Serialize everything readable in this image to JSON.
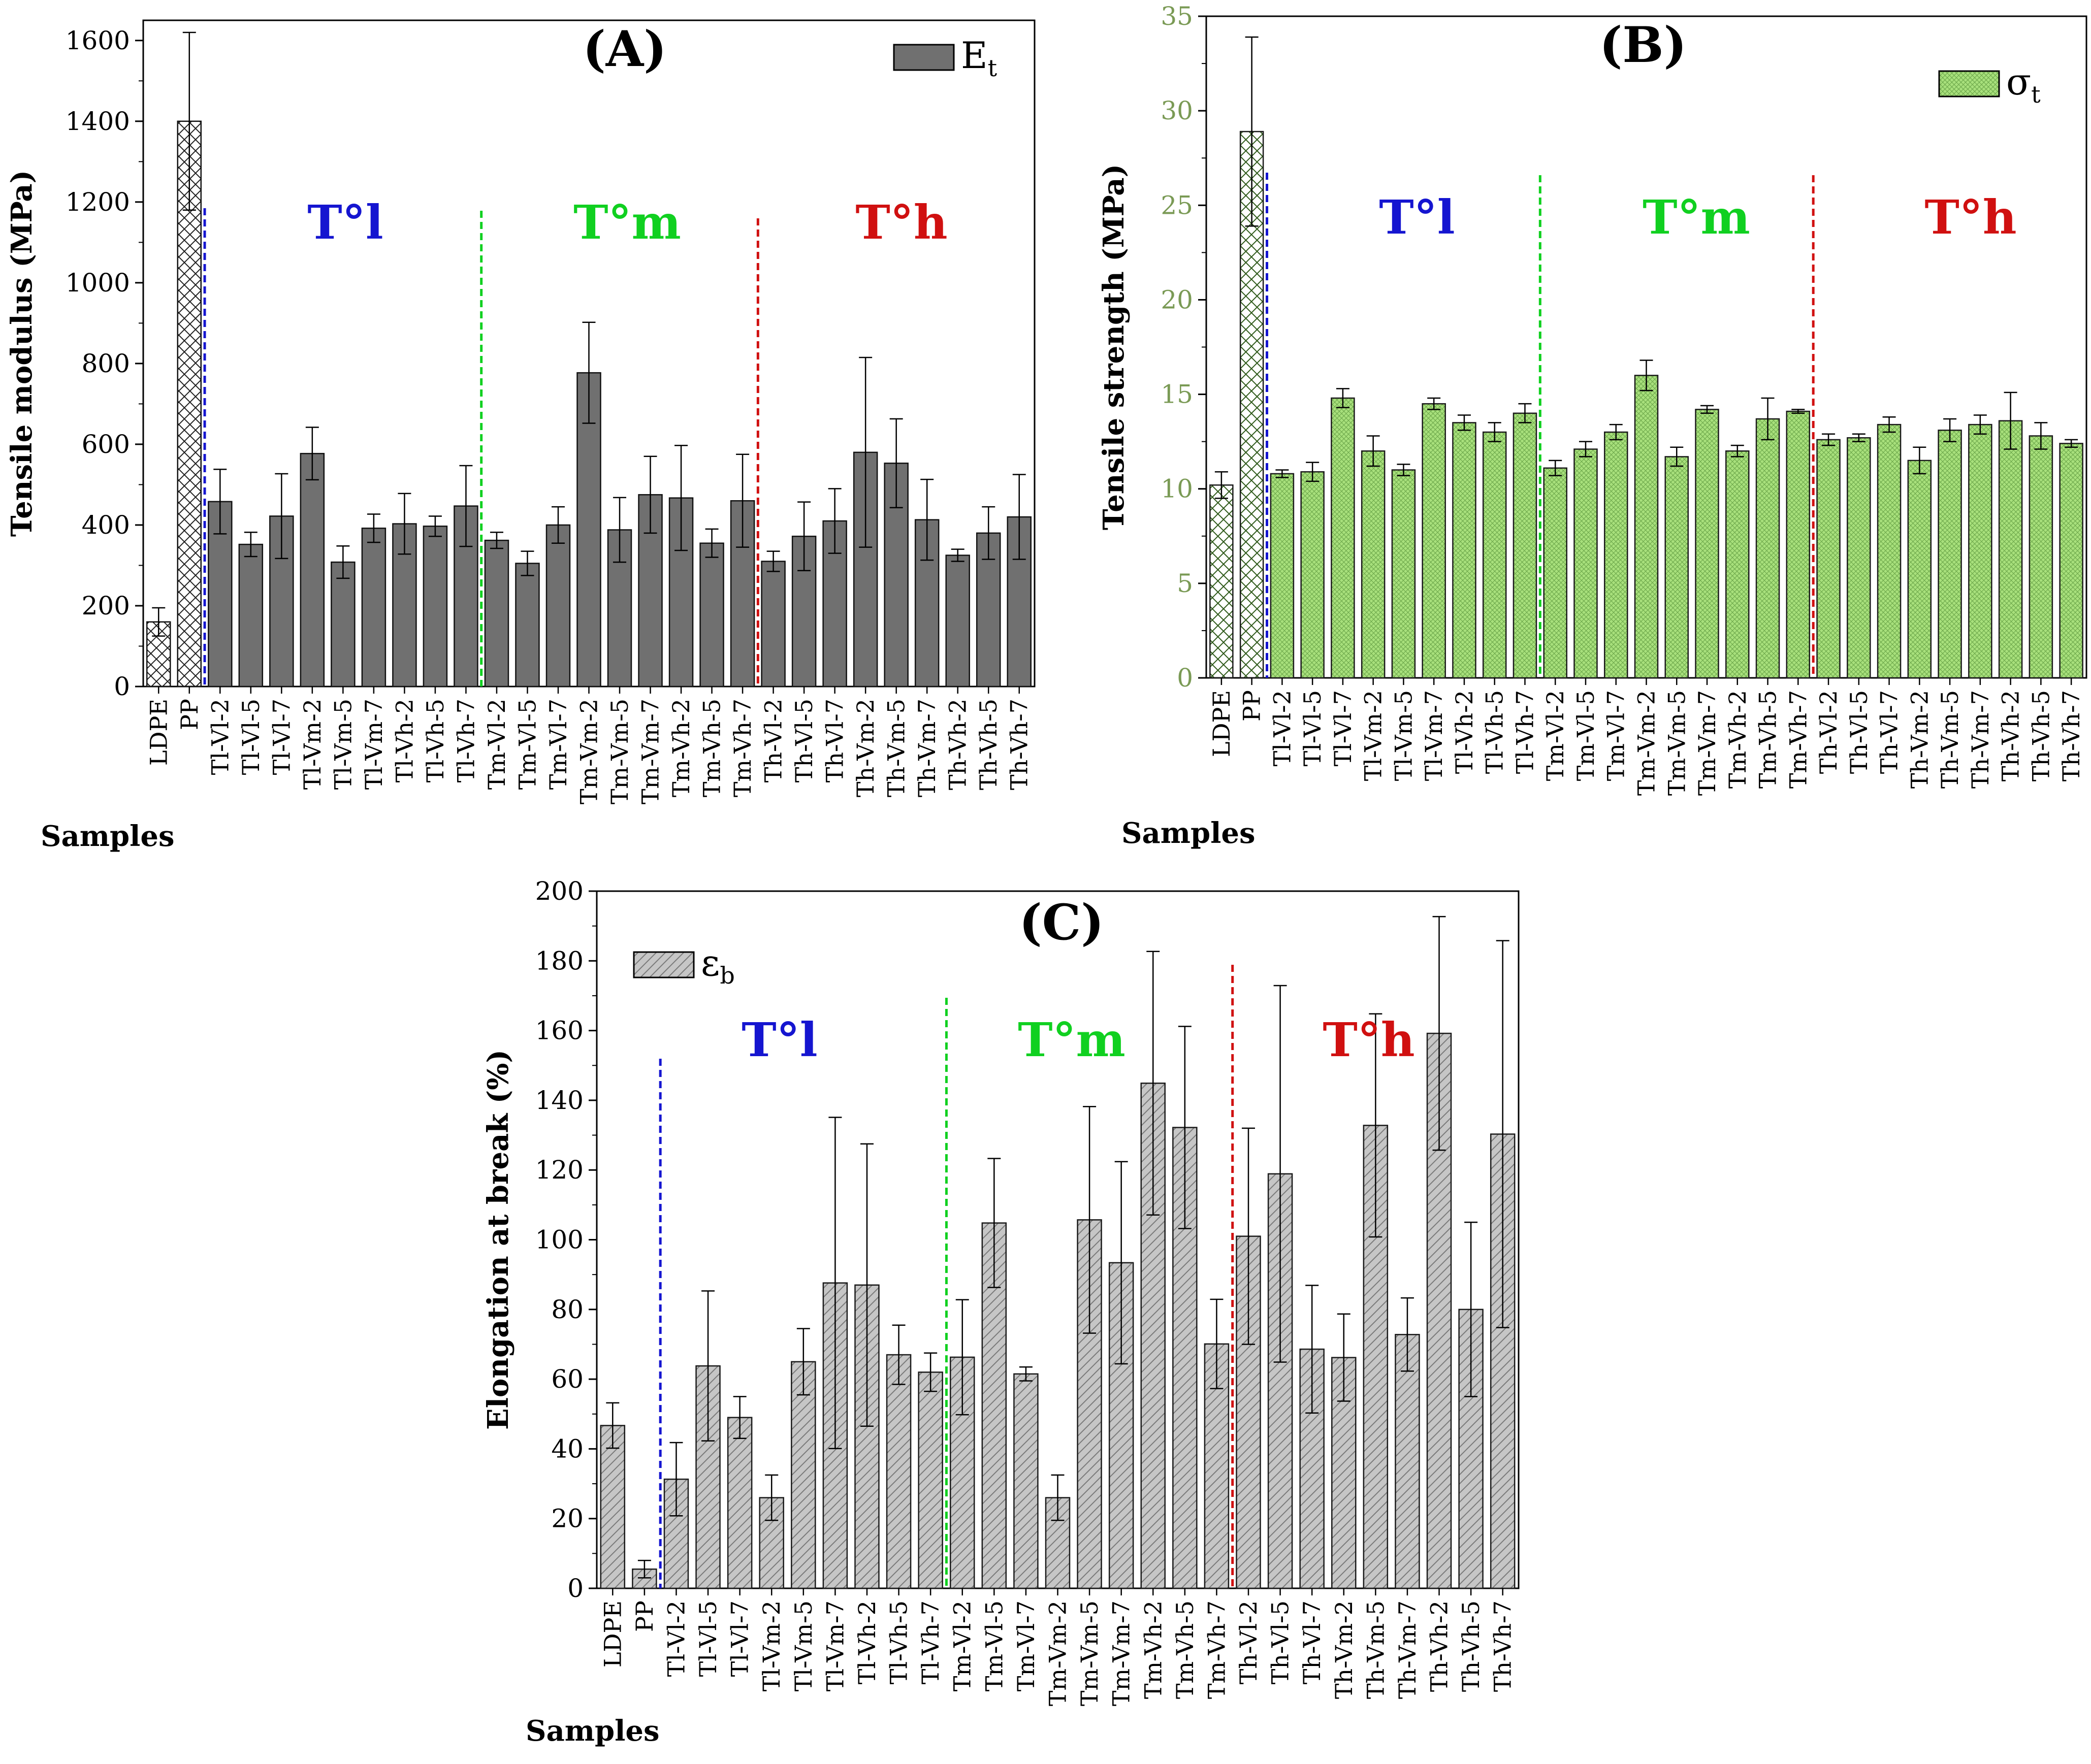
{
  "palette": {
    "axis": "#000000",
    "barA": "#707070",
    "barB": "#a6e07a",
    "barC": "#c4c4c4",
    "blue": "#1515d0",
    "green": "#10d020",
    "red": "#d01010",
    "axisB": "#7a9a55"
  },
  "categories": [
    "LDPE",
    "PP",
    "Tl-Vl-2",
    "Tl-Vl-5",
    "Tl-Vl-7",
    "Tl-Vm-2",
    "Tl-Vm-5",
    "Tl-Vm-7",
    "Tl-Vh-2",
    "Tl-Vh-5",
    "Tl-Vh-7",
    "Tm-Vl-2",
    "Tm-Vl-5",
    "Tm-Vl-7",
    "Tm-Vm-2",
    "Tm-Vm-5",
    "Tm-Vm-7",
    "Tm-Vh-2",
    "Tm-Vh-5",
    "Tm-Vh-7",
    "Th-Vl-2",
    "Th-Vl-5",
    "Th-Vl-7",
    "Th-Vm-2",
    "Th-Vm-5",
    "Th-Vm-7",
    "Th-Vh-2",
    "Th-Vh-5",
    "Th-Vh-7"
  ],
  "chart_data": [
    {
      "type": "bar",
      "panel": "(A)",
      "title": "(A)",
      "ylabel": "Tensile modulus (MPa)",
      "xlabel": "Samples",
      "legend": "E",
      "legend_sub": "t",
      "legend_position": "top-right",
      "ylim": [
        0,
        1650
      ],
      "yticks": [
        0,
        200,
        400,
        600,
        800,
        1000,
        1200,
        1400,
        1600
      ],
      "values": [
        160,
        1400,
        458,
        352,
        422,
        577,
        308,
        392,
        403,
        397,
        447,
        362,
        305,
        400,
        777,
        388,
        475,
        467,
        355,
        460,
        310,
        372,
        410,
        580,
        553,
        413,
        325,
        380,
        420
      ],
      "errors": [
        35,
        220,
        80,
        30,
        105,
        65,
        40,
        35,
        75,
        25,
        100,
        20,
        30,
        45,
        125,
        80,
        95,
        130,
        35,
        115,
        25,
        85,
        80,
        235,
        110,
        100,
        15,
        65,
        105
      ],
      "regions": [
        {
          "label": "T°l",
          "after_index": 1,
          "color": "#1515d0"
        },
        {
          "label": "T°m",
          "after_index": 10,
          "color": "#10d020"
        },
        {
          "label": "T°h",
          "after_index": 19,
          "color": "#d01010"
        }
      ]
    },
    {
      "type": "bar",
      "panel": "(B)",
      "title": "(B)",
      "ylabel": "Tensile strength (MPa)",
      "xlabel": "Samples",
      "legend": "σ",
      "legend_sub": "t",
      "legend_position": "top-right",
      "ylim": [
        0,
        35
      ],
      "yticks": [
        0,
        5,
        10,
        15,
        20,
        25,
        30,
        35
      ],
      "values": [
        10.2,
        28.9,
        10.8,
        10.9,
        14.8,
        12.0,
        11.0,
        14.5,
        13.5,
        13.0,
        14.0,
        11.1,
        12.1,
        13.0,
        16.0,
        11.7,
        14.2,
        12.0,
        13.7,
        14.1,
        12.6,
        12.7,
        13.4,
        11.5,
        13.1,
        13.4,
        13.6,
        12.8,
        12.4
      ],
      "errors": [
        0.7,
        5.0,
        0.2,
        0.5,
        0.5,
        0.8,
        0.3,
        0.3,
        0.4,
        0.5,
        0.5,
        0.4,
        0.4,
        0.4,
        0.8,
        0.5,
        0.2,
        0.3,
        1.1,
        0.1,
        0.3,
        0.2,
        0.4,
        0.7,
        0.6,
        0.5,
        1.5,
        0.7,
        0.2
      ],
      "regions": [
        {
          "label": "T°l",
          "after_index": 1,
          "color": "#1515d0"
        },
        {
          "label": "T°m",
          "after_index": 10,
          "color": "#10d020"
        },
        {
          "label": "T°h",
          "after_index": 19,
          "color": "#d01010"
        }
      ]
    },
    {
      "type": "bar",
      "panel": "(C)",
      "title": "(C)",
      "ylabel": "Elongation at break (%)",
      "xlabel": "Samples",
      "legend": "ε",
      "legend_sub": "b",
      "legend_position": "top-left",
      "ylim": [
        0,
        200
      ],
      "yticks": [
        0,
        20,
        40,
        60,
        80,
        100,
        120,
        140,
        160,
        180,
        200
      ],
      "values": [
        46.7,
        5.5,
        31.3,
        63.8,
        49.0,
        26.0,
        65.0,
        87.6,
        87.0,
        67.0,
        62.0,
        66.3,
        104.8,
        61.5,
        26.0,
        105.7,
        93.4,
        144.9,
        132.2,
        70.1,
        101.0,
        118.9,
        68.6,
        66.2,
        132.8,
        72.8,
        159.2,
        80.0,
        130.3
      ],
      "errors": [
        6.5,
        2.5,
        10.5,
        21.5,
        6.0,
        6.5,
        9.5,
        47.5,
        40.5,
        8.5,
        5.5,
        16.5,
        18.5,
        2.0,
        6.5,
        32.5,
        29.0,
        37.8,
        29.0,
        12.8,
        31.0,
        54.0,
        18.3,
        12.5,
        32.0,
        10.5,
        33.5,
        25.0,
        55.5
      ],
      "regions": [
        {
          "label": "T°l",
          "after_index": 1,
          "color": "#1515d0"
        },
        {
          "label": "T°m",
          "after_index": 10,
          "color": "#10d020"
        },
        {
          "label": "T°h",
          "after_index": 19,
          "color": "#d01010"
        }
      ]
    }
  ]
}
